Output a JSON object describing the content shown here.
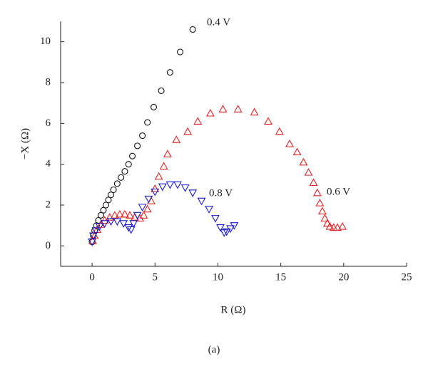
{
  "chart_data": {
    "type": "scatter",
    "x_label": "R (Ω)",
    "y_label": "−X (Ω)",
    "caption": "(a)",
    "xlim": [
      -2.5,
      25
    ],
    "ylim": [
      -1,
      11
    ],
    "xticks": [
      0,
      5,
      10,
      15,
      20,
      25
    ],
    "yticks": [
      0,
      2,
      4,
      6,
      8,
      10
    ],
    "series": [
      {
        "name": "0.4 V",
        "color": "#111111",
        "marker": "circle",
        "x": [
          0,
          0.1,
          0.2,
          0.35,
          0.5,
          0.7,
          0.9,
          1.1,
          1.3,
          1.5,
          1.7,
          2.0,
          2.3,
          2.6,
          2.9,
          3.2,
          3.6,
          4.0,
          4.4,
          4.9,
          5.5,
          6.2,
          7.0,
          8.0
        ],
        "values": [
          0.2,
          0.5,
          0.75,
          1.0,
          1.25,
          1.5,
          1.75,
          2.0,
          2.25,
          2.5,
          2.75,
          3.05,
          3.35,
          3.65,
          4.0,
          4.4,
          4.9,
          5.4,
          6.05,
          6.8,
          7.6,
          8.5,
          9.5,
          10.6
        ]
      },
      {
        "name": "0.6 V",
        "color": "#e02424",
        "marker": "triangle",
        "x": [
          0.05,
          0.2,
          0.4,
          0.7,
          1.0,
          1.4,
          1.8,
          2.2,
          2.6,
          3.0,
          3.4,
          3.8,
          4.1,
          4.4,
          4.7,
          5.0,
          5.3,
          5.7,
          6.0,
          6.7,
          7.6,
          8.4,
          9.4,
          10.4,
          11.6,
          12.9,
          14.0,
          14.9,
          15.7,
          16.3,
          16.8,
          17.2,
          17.6,
          17.9,
          18.1,
          18.3,
          18.5,
          18.7,
          18.9,
          19.2,
          19.5,
          19.9
        ],
        "values": [
          0.25,
          0.5,
          0.8,
          1.05,
          1.25,
          1.4,
          1.5,
          1.55,
          1.55,
          1.5,
          1.4,
          1.35,
          1.5,
          1.8,
          2.2,
          2.8,
          3.4,
          3.9,
          4.5,
          5.2,
          5.6,
          6.1,
          6.5,
          6.7,
          6.7,
          6.55,
          6.1,
          5.6,
          5.0,
          4.6,
          4.1,
          3.6,
          3.1,
          2.6,
          2.1,
          1.7,
          1.35,
          1.1,
          0.95,
          0.9,
          0.9,
          0.95
        ]
      },
      {
        "name": "0.8 V",
        "color": "#1c1ccc",
        "marker": "triangle-down",
        "x": [
          0,
          0.1,
          0.3,
          0.6,
          1.0,
          1.5,
          2.0,
          2.5,
          2.9,
          3.1,
          3.3,
          3.6,
          4.0,
          4.5,
          5.0,
          5.6,
          6.2,
          6.8,
          7.4,
          8.0,
          8.7,
          9.3,
          9.8,
          10.2,
          10.5,
          10.7,
          11.0,
          11.3
        ],
        "values": [
          0.2,
          0.5,
          0.75,
          0.95,
          1.1,
          1.2,
          1.2,
          1.1,
          0.9,
          0.8,
          1.1,
          1.5,
          1.9,
          2.3,
          2.65,
          2.9,
          3.0,
          3.0,
          2.85,
          2.6,
          2.2,
          1.8,
          1.35,
          0.9,
          0.65,
          0.7,
          0.85,
          1.0
        ]
      }
    ]
  }
}
